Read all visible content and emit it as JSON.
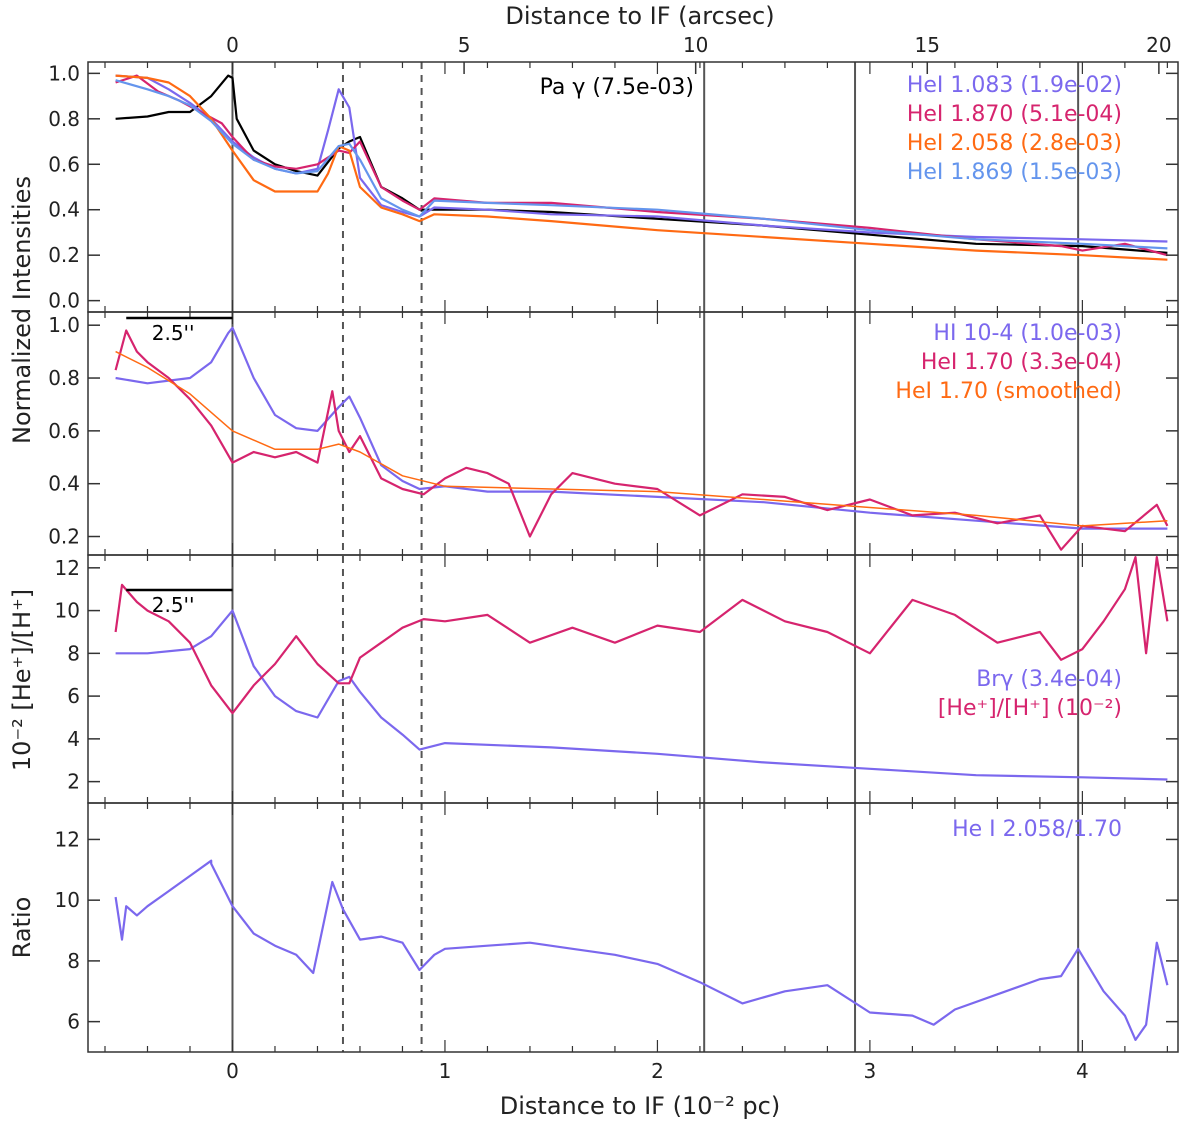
{
  "chart_data": [
    {
      "panel": 1,
      "type": "line",
      "top_axis_label": "Distance to IF (arcsec)",
      "top_ticks": [
        "0",
        "5",
        "10",
        "15",
        "20"
      ],
      "ylabel": "Normalized Intensities",
      "yticks": [
        "0.0",
        "0.2",
        "0.4",
        "0.6",
        "0.8",
        "1.0"
      ],
      "ylim": [
        -0.05,
        1.05
      ],
      "legend": [
        {
          "name": "Pa γ (7.5e-03)",
          "color": "#000000"
        },
        {
          "name": "HeI 1.083  (1.9e-02)",
          "color": "#7B68EE"
        },
        {
          "name": "HeI 1.870  (5.1e-04)",
          "color": "#D6246E"
        },
        {
          "name": "HeI 2.058  (2.8e-03)",
          "color": "#FF6A13"
        },
        {
          "name": "HeI 1.869  (1.5e-03)",
          "color": "#6495ED"
        }
      ],
      "series": [
        {
          "name": "Pa γ (7.5e-03)",
          "color": "#000000",
          "x": [
            -0.55,
            -0.4,
            -0.3,
            -0.2,
            -0.1,
            -0.02,
            0.0,
            0.02,
            0.1,
            0.2,
            0.3,
            0.4,
            0.5,
            0.55,
            0.6,
            0.7,
            0.8,
            0.88,
            0.95,
            1.2,
            1.5,
            2.0,
            2.5,
            3.0,
            3.5,
            4.0,
            4.4
          ],
          "y": [
            0.8,
            0.81,
            0.83,
            0.83,
            0.9,
            0.99,
            0.98,
            0.8,
            0.66,
            0.6,
            0.57,
            0.55,
            0.67,
            0.7,
            0.72,
            0.5,
            0.45,
            0.4,
            0.4,
            0.4,
            0.39,
            0.36,
            0.33,
            0.29,
            0.25,
            0.24,
            0.21
          ]
        },
        {
          "name": "HeI 1.083  (1.9e-02)",
          "color": "#7B68EE",
          "x": [
            -0.55,
            -0.4,
            -0.3,
            -0.2,
            -0.1,
            0.0,
            0.1,
            0.2,
            0.3,
            0.4,
            0.45,
            0.5,
            0.55,
            0.6,
            0.7,
            0.8,
            0.88,
            0.95,
            1.2,
            1.5,
            2.0,
            2.5,
            3.0,
            3.5,
            4.0,
            4.4
          ],
          "y": [
            0.99,
            0.98,
            0.93,
            0.87,
            0.8,
            0.7,
            0.63,
            0.58,
            0.56,
            0.58,
            0.75,
            0.93,
            0.85,
            0.54,
            0.42,
            0.39,
            0.37,
            0.41,
            0.4,
            0.38,
            0.37,
            0.33,
            0.3,
            0.28,
            0.27,
            0.26
          ]
        },
        {
          "name": "HeI 1.870  (5.1e-04)",
          "color": "#D6246E",
          "x": [
            -0.55,
            -0.45,
            -0.35,
            -0.25,
            -0.15,
            -0.05,
            0.0,
            0.1,
            0.2,
            0.3,
            0.4,
            0.5,
            0.55,
            0.6,
            0.7,
            0.8,
            0.88,
            0.95,
            1.2,
            1.5,
            2.0,
            2.5,
            3.0,
            3.5,
            3.9,
            4.0,
            4.2,
            4.4
          ],
          "y": [
            0.96,
            0.99,
            0.92,
            0.88,
            0.83,
            0.78,
            0.72,
            0.62,
            0.59,
            0.58,
            0.6,
            0.66,
            0.65,
            0.7,
            0.5,
            0.44,
            0.4,
            0.45,
            0.43,
            0.43,
            0.39,
            0.36,
            0.32,
            0.27,
            0.24,
            0.22,
            0.25,
            0.2
          ]
        },
        {
          "name": "HeI 2.058  (2.8e-03)",
          "color": "#FF6A13",
          "x": [
            -0.55,
            -0.4,
            -0.3,
            -0.2,
            -0.1,
            0.0,
            0.1,
            0.2,
            0.3,
            0.4,
            0.45,
            0.5,
            0.55,
            0.6,
            0.7,
            0.8,
            0.88,
            0.95,
            1.2,
            1.5,
            2.0,
            2.5,
            3.0,
            3.5,
            4.0,
            4.4
          ],
          "y": [
            0.99,
            0.98,
            0.96,
            0.9,
            0.8,
            0.66,
            0.53,
            0.48,
            0.48,
            0.48,
            0.56,
            0.68,
            0.66,
            0.5,
            0.41,
            0.38,
            0.35,
            0.38,
            0.37,
            0.35,
            0.31,
            0.28,
            0.25,
            0.22,
            0.2,
            0.18
          ]
        },
        {
          "name": "HeI 1.869  (1.5e-03)",
          "color": "#6495ED",
          "x": [
            -0.55,
            -0.4,
            -0.3,
            -0.2,
            -0.1,
            0.0,
            0.1,
            0.2,
            0.3,
            0.4,
            0.5,
            0.55,
            0.6,
            0.7,
            0.8,
            0.88,
            0.95,
            1.2,
            1.5,
            2.0,
            2.5,
            3.0,
            3.5,
            4.0,
            4.4
          ],
          "y": [
            0.97,
            0.93,
            0.9,
            0.86,
            0.79,
            0.69,
            0.62,
            0.58,
            0.56,
            0.57,
            0.68,
            0.69,
            0.62,
            0.45,
            0.4,
            0.37,
            0.44,
            0.43,
            0.42,
            0.4,
            0.36,
            0.31,
            0.27,
            0.25,
            0.23
          ]
        }
      ]
    },
    {
      "panel": 2,
      "type": "line",
      "yticks": [
        "0.2",
        "0.4",
        "0.6",
        "0.8",
        "1.0"
      ],
      "ylim": [
        0.13,
        1.05
      ],
      "scalebar_label": "2.5''",
      "legend": [
        {
          "name": "HI 10-4  (1.0e-03)",
          "color": "#7B68EE"
        },
        {
          "name": "HeI 1.70  (3.3e-04)",
          "color": "#D6246E"
        },
        {
          "name": "HeI 1.70  (smoothed)",
          "color": "#FF6A13"
        }
      ],
      "series": [
        {
          "name": "HI 10-4  (1.0e-03)",
          "color": "#7B68EE",
          "x": [
            -0.55,
            -0.4,
            -0.2,
            -0.1,
            -0.02,
            0.0,
            0.1,
            0.2,
            0.3,
            0.4,
            0.5,
            0.55,
            0.6,
            0.7,
            0.8,
            0.88,
            1.0,
            1.2,
            1.5,
            2.0,
            2.5,
            3.0,
            3.5,
            4.0,
            4.4
          ],
          "y": [
            0.8,
            0.78,
            0.8,
            0.86,
            0.97,
            0.99,
            0.8,
            0.66,
            0.61,
            0.6,
            0.69,
            0.73,
            0.65,
            0.47,
            0.41,
            0.38,
            0.39,
            0.37,
            0.37,
            0.35,
            0.33,
            0.29,
            0.26,
            0.23,
            0.23
          ]
        },
        {
          "name": "HeI 1.70  (3.3e-04)",
          "color": "#D6246E",
          "x": [
            -0.55,
            -0.5,
            -0.45,
            -0.4,
            -0.3,
            -0.2,
            -0.1,
            0.0,
            0.1,
            0.2,
            0.3,
            0.4,
            0.47,
            0.5,
            0.55,
            0.6,
            0.7,
            0.8,
            0.9,
            1.0,
            1.1,
            1.2,
            1.3,
            1.4,
            1.5,
            1.6,
            1.8,
            2.0,
            2.2,
            2.4,
            2.6,
            2.8,
            3.0,
            3.2,
            3.4,
            3.6,
            3.8,
            3.9,
            4.0,
            4.2,
            4.35,
            4.4
          ],
          "y": [
            0.83,
            0.98,
            0.9,
            0.86,
            0.8,
            0.72,
            0.62,
            0.48,
            0.52,
            0.5,
            0.52,
            0.48,
            0.75,
            0.6,
            0.52,
            0.58,
            0.42,
            0.38,
            0.36,
            0.42,
            0.46,
            0.44,
            0.4,
            0.2,
            0.36,
            0.44,
            0.4,
            0.38,
            0.28,
            0.36,
            0.35,
            0.3,
            0.34,
            0.28,
            0.29,
            0.25,
            0.28,
            0.15,
            0.24,
            0.22,
            0.32,
            0.24
          ]
        },
        {
          "name": "HeI 1.70  (smoothed)",
          "color": "#FF6A13",
          "x": [
            -0.55,
            -0.4,
            -0.2,
            0.0,
            0.2,
            0.4,
            0.5,
            0.6,
            0.8,
            1.0,
            1.5,
            2.0,
            2.5,
            3.0,
            3.5,
            4.0,
            4.4
          ],
          "y": [
            0.9,
            0.84,
            0.74,
            0.6,
            0.53,
            0.53,
            0.55,
            0.52,
            0.43,
            0.39,
            0.38,
            0.37,
            0.34,
            0.31,
            0.28,
            0.24,
            0.26
          ]
        }
      ]
    },
    {
      "panel": 3,
      "type": "line",
      "ylabel": "10⁻² [He⁺]/[H⁺]",
      "yticks": [
        "2",
        "4",
        "6",
        "8",
        "10",
        "12"
      ],
      "ylim": [
        1.0,
        12.6
      ],
      "scalebar_label": "2.5''",
      "legend": [
        {
          "name": "Brγ (3.4e-04)",
          "color": "#7B68EE"
        },
        {
          "name": "[He⁺]/[H⁺] (10⁻²)",
          "color": "#D6246E"
        }
      ],
      "series": [
        {
          "name": "Brγ (3.4e-04)",
          "color": "#7B68EE",
          "x": [
            -0.55,
            -0.4,
            -0.2,
            -0.1,
            0.0,
            0.1,
            0.2,
            0.3,
            0.4,
            0.5,
            0.55,
            0.6,
            0.7,
            0.8,
            0.88,
            1.0,
            1.5,
            2.0,
            2.5,
            3.0,
            3.5,
            4.0,
            4.4
          ],
          "y": [
            8.0,
            8.0,
            8.2,
            8.8,
            10.0,
            7.4,
            6.0,
            5.3,
            5.0,
            6.7,
            6.9,
            6.2,
            5.0,
            4.2,
            3.5,
            3.8,
            3.6,
            3.3,
            2.9,
            2.6,
            2.3,
            2.2,
            2.1
          ]
        },
        {
          "name": "[He⁺]/[H⁺] (10⁻²)",
          "color": "#D6246E",
          "x": [
            -0.55,
            -0.52,
            -0.45,
            -0.4,
            -0.3,
            -0.2,
            -0.1,
            0.0,
            0.1,
            0.2,
            0.3,
            0.4,
            0.5,
            0.55,
            0.6,
            0.7,
            0.8,
            0.9,
            1.0,
            1.2,
            1.4,
            1.6,
            1.8,
            2.0,
            2.2,
            2.4,
            2.6,
            2.8,
            3.0,
            3.2,
            3.4,
            3.6,
            3.8,
            3.9,
            4.0,
            4.1,
            4.2,
            4.25,
            4.3,
            4.35,
            4.4
          ],
          "y": [
            9.0,
            11.2,
            10.4,
            10.0,
            9.5,
            8.5,
            6.5,
            5.2,
            6.5,
            7.5,
            8.8,
            7.5,
            6.6,
            6.6,
            7.8,
            8.5,
            9.2,
            9.6,
            9.5,
            9.8,
            8.5,
            9.2,
            8.5,
            9.3,
            9.0,
            10.5,
            9.5,
            9.0,
            8.0,
            10.5,
            9.8,
            8.5,
            9.0,
            7.7,
            8.2,
            9.5,
            11.0,
            12.5,
            8.0,
            12.5,
            9.5
          ]
        }
      ]
    },
    {
      "panel": 4,
      "type": "line",
      "ylabel": "Ratio",
      "yticks": [
        "6",
        "8",
        "10",
        "12"
      ],
      "ylim": [
        5.0,
        13.2
      ],
      "xlabel": "Distance to IF (10⁻² pc)",
      "xticks": [
        "0",
        "1",
        "2",
        "3",
        "4"
      ],
      "xlim": [
        -0.68,
        4.45
      ],
      "legend": [
        {
          "name": "He I 2.058/1.70",
          "color": "#7B68EE"
        }
      ],
      "series": [
        {
          "name": "He I 2.058/1.70",
          "color": "#7B68EE",
          "x": [
            -0.55,
            -0.52,
            -0.5,
            -0.45,
            -0.4,
            -0.3,
            -0.2,
            -0.1,
            -0.1,
            0.0,
            0.1,
            0.2,
            0.3,
            0.38,
            0.47,
            0.52,
            0.6,
            0.7,
            0.8,
            0.88,
            0.95,
            1.0,
            1.2,
            1.4,
            1.6,
            1.8,
            2.0,
            2.2,
            2.4,
            2.6,
            2.8,
            3.0,
            3.2,
            3.3,
            3.4,
            3.6,
            3.8,
            3.9,
            3.98,
            4.1,
            4.2,
            4.25,
            4.3,
            4.35,
            4.4
          ],
          "y": [
            10.1,
            8.7,
            9.8,
            9.5,
            9.8,
            10.3,
            10.8,
            11.3,
            11.2,
            9.8,
            8.9,
            8.5,
            8.2,
            7.6,
            10.6,
            9.7,
            8.7,
            8.8,
            8.6,
            7.7,
            8.2,
            8.4,
            8.5,
            8.6,
            8.4,
            8.2,
            7.9,
            7.3,
            6.6,
            7.0,
            7.2,
            6.3,
            6.2,
            5.9,
            6.4,
            6.9,
            7.4,
            7.5,
            8.4,
            7.0,
            6.2,
            5.4,
            5.9,
            8.6,
            7.2
          ]
        }
      ]
    }
  ]
}
